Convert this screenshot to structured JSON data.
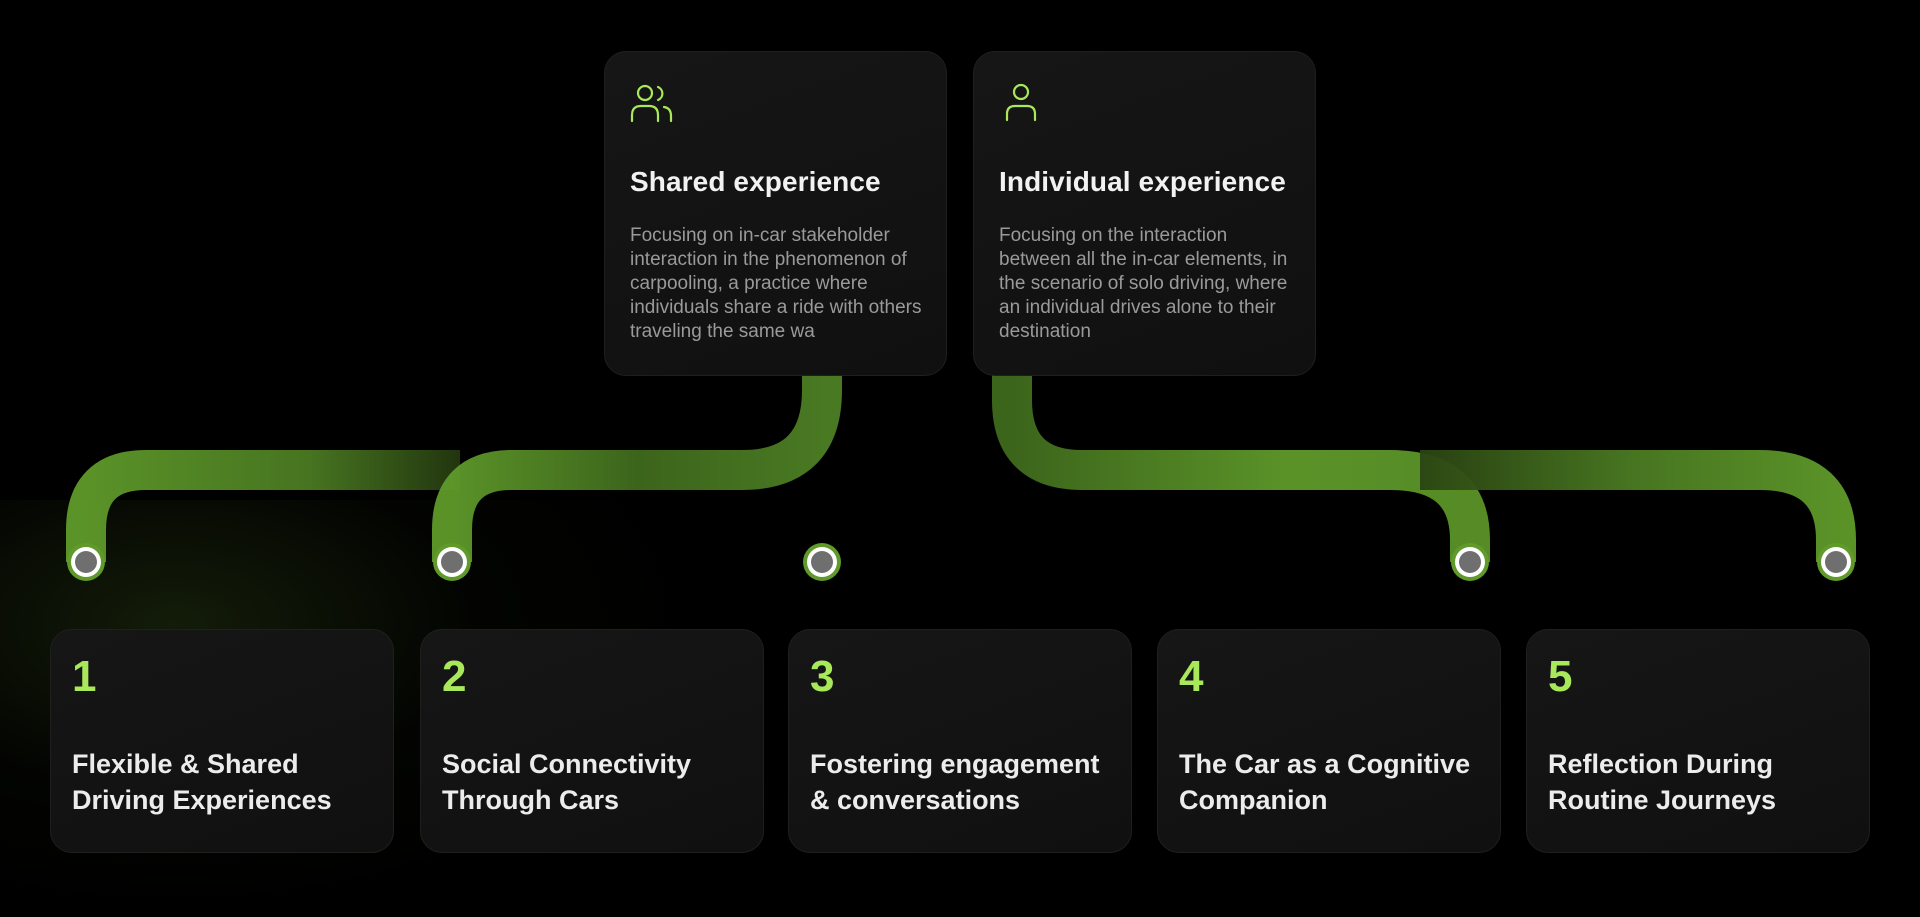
{
  "colors": {
    "accent": "#a8e85a",
    "connector": "#5f9a2a",
    "node_fill": "#6f6f6f",
    "card_bg": "#141414"
  },
  "top_cards": [
    {
      "icon": "users-icon",
      "title": "Shared experience",
      "description": "Focusing on in-car stakeholder interaction in the phenomenon of carpooling, a practice where individuals share a ride with others traveling the same wa"
    },
    {
      "icon": "user-icon",
      "title": "Individual experience",
      "description": "Focusing on the interaction between all the in-car elements, in the scenario of solo driving, where an individual drives alone to their destination"
    }
  ],
  "items": [
    {
      "number": "1",
      "title": "Flexible & Shared Driving Experiences",
      "group": "Shared experience"
    },
    {
      "number": "2",
      "title": "Social Connectivity Through Cars",
      "group": "Shared experience"
    },
    {
      "number": "3",
      "title": "Fostering engagement & conversations",
      "group": "Shared experience"
    },
    {
      "number": "4",
      "title": "The Car as a Cognitive Companion",
      "group": "Individual experience"
    },
    {
      "number": "5",
      "title": "Reflection During Routine Journeys",
      "group": "Individual experience"
    }
  ]
}
